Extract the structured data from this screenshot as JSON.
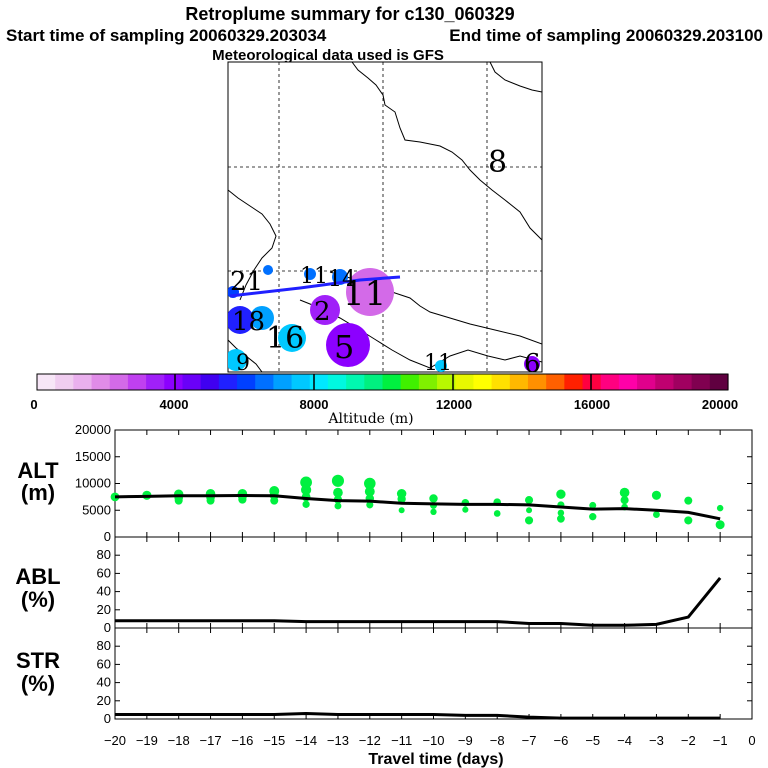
{
  "header": {
    "title": "Retroplume summary for c130_060329",
    "start_label": "Start time of sampling 20060329.203034",
    "end_label": "End time of sampling 20060329.203100",
    "met_label": "Meteorological data used is GFS"
  },
  "chart_data": {
    "type": "composite",
    "map": {
      "day_labels": [
        {
          "text": "8",
          "role": "map-label"
        },
        {
          "text": "21",
          "role": "map-label"
        },
        {
          "text": "11",
          "role": "map-label"
        },
        {
          "text": "14",
          "role": "map-label"
        },
        {
          "text": "11",
          "role": "map-label"
        },
        {
          "text": "2",
          "role": "map-label"
        },
        {
          "text": "5",
          "role": "map-label"
        },
        {
          "text": "16",
          "role": "map-label"
        },
        {
          "text": "18",
          "role": "map-label"
        },
        {
          "text": "9",
          "role": "map-label"
        },
        {
          "text": "11",
          "role": "map-label"
        },
        {
          "text": "6",
          "role": "map-label"
        }
      ]
    },
    "colorbar": {
      "label": "Altitude (m)",
      "range": [
        0,
        20000
      ],
      "tick_labels": [
        "0",
        "4000",
        "8000",
        "12000",
        "16000",
        "20000"
      ],
      "colors": [
        "#f7e6f7",
        "#f0cdf0",
        "#eab0ee",
        "#e08ce8",
        "#d36ae8",
        "#c040f0",
        "#a020f8",
        "#8c00ff",
        "#6a00f8",
        "#4000f0",
        "#2020ff",
        "#0040ff",
        "#0070ff",
        "#00a0ff",
        "#00c8ff",
        "#00e8ff",
        "#00f8e0",
        "#00f8b0",
        "#00f080",
        "#00f040",
        "#40f000",
        "#80f000",
        "#b8f800",
        "#e8f800",
        "#ffff00",
        "#ffe000",
        "#ffb800",
        "#ff9000",
        "#ff6000",
        "#ff2000",
        "#ff0040",
        "#ff0080",
        "#ff00a8",
        "#e0008c",
        "#c00070",
        "#a00060",
        "#800050",
        "#600040"
      ]
    },
    "alt_panel": {
      "label": "ALT\n(m)",
      "label_top": "ALT",
      "label_bottom": "(m)",
      "ylim": [
        0,
        20000
      ],
      "y_ticks": [
        "0",
        "5000",
        "10000",
        "15000",
        "20000"
      ],
      "x": [
        -20,
        -19,
        -18,
        -17,
        -16,
        -15,
        -14,
        -13,
        -12,
        -11,
        -10,
        -9,
        -8,
        -7,
        -6,
        -5,
        -4,
        -3,
        -2,
        -1
      ],
      "line": [
        7500,
        7600,
        7700,
        7700,
        7750,
        7700,
        7200,
        6800,
        6700,
        6300,
        6200,
        6100,
        6100,
        6000,
        5600,
        5200,
        5300,
        5000,
        4600,
        3400
      ],
      "points": [
        {
          "x": -20,
          "y": 7500
        },
        {
          "x": -19,
          "y": 7800
        },
        {
          "x": -18,
          "y": 7300
        },
        {
          "x": -18,
          "y": 6800
        },
        {
          "x": -18,
          "y": 8000
        },
        {
          "x": -17,
          "y": 7400
        },
        {
          "x": -17,
          "y": 6800
        },
        {
          "x": -17,
          "y": 8100
        },
        {
          "x": -16,
          "y": 7600
        },
        {
          "x": -16,
          "y": 7000
        },
        {
          "x": -16,
          "y": 8100
        },
        {
          "x": -15,
          "y": 7800
        },
        {
          "x": -15,
          "y": 6800
        },
        {
          "x": -15,
          "y": 8600
        },
        {
          "x": -14,
          "y": 8800
        },
        {
          "x": -14,
          "y": 7500
        },
        {
          "x": -14,
          "y": 6100
        },
        {
          "x": -14,
          "y": 10200
        },
        {
          "x": -13,
          "y": 8300
        },
        {
          "x": -13,
          "y": 7000
        },
        {
          "x": -13,
          "y": 5800
        },
        {
          "x": -13,
          "y": 10500
        },
        {
          "x": -12,
          "y": 7200
        },
        {
          "x": -12,
          "y": 6000
        },
        {
          "x": -12,
          "y": 8500
        },
        {
          "x": -12,
          "y": 10000
        },
        {
          "x": -11,
          "y": 7100
        },
        {
          "x": -11,
          "y": 5000
        },
        {
          "x": -11,
          "y": 8100
        },
        {
          "x": -10,
          "y": 7200
        },
        {
          "x": -10,
          "y": 5900
        },
        {
          "x": -10,
          "y": 4700
        },
        {
          "x": -9,
          "y": 6400
        },
        {
          "x": -9,
          "y": 5100
        },
        {
          "x": -8,
          "y": 6500
        },
        {
          "x": -8,
          "y": 4400
        },
        {
          "x": -7,
          "y": 6900
        },
        {
          "x": -7,
          "y": 5000
        },
        {
          "x": -7,
          "y": 3100
        },
        {
          "x": -6,
          "y": 8000
        },
        {
          "x": -6,
          "y": 6000
        },
        {
          "x": -6,
          "y": 4500
        },
        {
          "x": -6,
          "y": 3400
        },
        {
          "x": -5,
          "y": 5900
        },
        {
          "x": -5,
          "y": 3800
        },
        {
          "x": -4,
          "y": 8300
        },
        {
          "x": -4,
          "y": 6900
        },
        {
          "x": -4,
          "y": 5600
        },
        {
          "x": -3,
          "y": 7800
        },
        {
          "x": -3,
          "y": 4200
        },
        {
          "x": -2,
          "y": 6800
        },
        {
          "x": -2,
          "y": 3100
        },
        {
          "x": -1,
          "y": 5400
        },
        {
          "x": -1,
          "y": 2300
        }
      ]
    },
    "abl_panel": {
      "label_top": "ABL",
      "label_bottom": "(%)",
      "ylim": [
        0,
        100
      ],
      "y_ticks": [
        "0",
        "20",
        "40",
        "60",
        "80"
      ],
      "x": [
        -20,
        -19,
        -18,
        -17,
        -16,
        -15,
        -14,
        -13,
        -12,
        -11,
        -10,
        -9,
        -8,
        -7,
        -6,
        -5,
        -4,
        -3,
        -2,
        -1
      ],
      "line": [
        8,
        8,
        8,
        8,
        8,
        8,
        7,
        7,
        7,
        7,
        7,
        7,
        7,
        5,
        5,
        3,
        3,
        4,
        12,
        55
      ]
    },
    "str_panel": {
      "label_top": "STR",
      "label_bottom": "(%)",
      "ylim": [
        0,
        100
      ],
      "y_ticks": [
        "0",
        "20",
        "40",
        "60",
        "80"
      ],
      "x": [
        -20,
        -19,
        -18,
        -17,
        -16,
        -15,
        -14,
        -13,
        -12,
        -11,
        -10,
        -9,
        -8,
        -7,
        -6,
        -5,
        -4,
        -3,
        -2,
        -1
      ],
      "line": [
        5,
        5,
        5,
        5,
        5,
        5,
        6,
        5,
        5,
        5,
        5,
        4,
        4,
        2,
        1,
        1,
        1,
        1,
        1,
        1
      ]
    },
    "xaxis": {
      "label": "Travel time (days)",
      "xlim": [
        -20,
        0
      ],
      "tick_labels": [
        "−20",
        "−19",
        "−18",
        "−17",
        "−16",
        "−15",
        "−14",
        "−13",
        "−12",
        "−11",
        "−10",
        "−9",
        "−8",
        "−7",
        "−6",
        "−5",
        "−4",
        "−3",
        "−2",
        "−1",
        "0"
      ]
    }
  }
}
